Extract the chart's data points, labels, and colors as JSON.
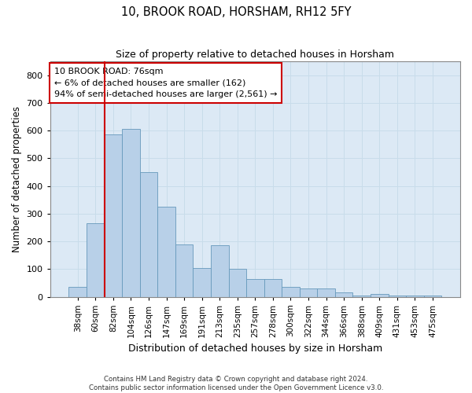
{
  "title": "10, BROOK ROAD, HORSHAM, RH12 5FY",
  "subtitle": "Size of property relative to detached houses in Horsham",
  "xlabel": "Distribution of detached houses by size in Horsham",
  "ylabel": "Number of detached properties",
  "categories": [
    "38sqm",
    "60sqm",
    "82sqm",
    "104sqm",
    "126sqm",
    "147sqm",
    "169sqm",
    "191sqm",
    "213sqm",
    "235sqm",
    "257sqm",
    "278sqm",
    "300sqm",
    "322sqm",
    "344sqm",
    "366sqm",
    "388sqm",
    "409sqm",
    "431sqm",
    "453sqm",
    "475sqm"
  ],
  "values": [
    35,
    265,
    585,
    605,
    450,
    325,
    190,
    105,
    185,
    100,
    65,
    65,
    35,
    30,
    30,
    15,
    5,
    10,
    5,
    5,
    5
  ],
  "bar_color": "#b8d0e8",
  "bar_edge_color": "#6699bb",
  "vline_color": "#cc0000",
  "vline_x_idx": 1.5,
  "annotation_text": "10 BROOK ROAD: 76sqm\n← 6% of detached houses are smaller (162)\n94% of semi-detached houses are larger (2,561) →",
  "annotation_box_color": "#ffffff",
  "annotation_box_edge": "#cc0000",
  "ylim": [
    0,
    850
  ],
  "yticks": [
    0,
    100,
    200,
    300,
    400,
    500,
    600,
    700,
    800
  ],
  "grid_color": "#c8dcea",
  "plot_bg_color": "#dce9f5",
  "fig_bg_color": "#ffffff",
  "footer1": "Contains HM Land Registry data © Crown copyright and database right 2024.",
  "footer2": "Contains public sector information licensed under the Open Government Licence v3.0."
}
